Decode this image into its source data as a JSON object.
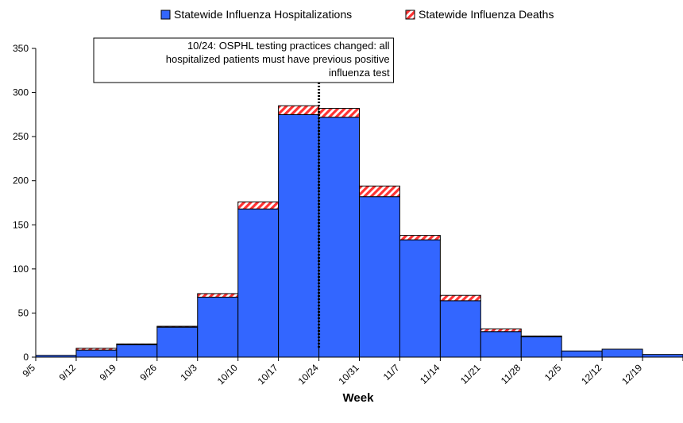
{
  "chart_data": {
    "type": "bar",
    "stacked": true,
    "categories": [
      "9/5",
      "9/12",
      "9/19",
      "9/26",
      "10/3",
      "10/10",
      "10/17",
      "10/24",
      "10/31",
      "11/7",
      "11/14",
      "11/21",
      "11/28",
      "12/5",
      "12/12",
      "12/19"
    ],
    "series": [
      {
        "name": "Statewide Influenza Hospitalizations",
        "color": "#3366ff",
        "values": [
          2,
          8,
          14,
          34,
          68,
          168,
          275,
          272,
          182,
          133,
          64,
          29,
          23,
          7,
          9,
          3
        ]
      },
      {
        "name": "Statewide Influenza Deaths",
        "color": "#ff3333",
        "pattern": "hatched",
        "values": [
          0,
          2,
          1,
          1,
          4,
          8,
          10,
          10,
          12,
          5,
          6,
          3,
          1,
          0,
          0,
          0
        ]
      }
    ],
    "title": "",
    "xlabel": "Week",
    "ylabel": "",
    "ylim": [
      0,
      350
    ],
    "yticks": [
      0,
      50,
      100,
      150,
      200,
      250,
      300,
      350
    ],
    "grid": false,
    "legend_position": "top",
    "annotation": {
      "category": "10/24",
      "line_style": "dotted",
      "lines": [
        "10/24: OSPHL testing practices changed: all",
        "hospitalized patients must have previous positive",
        "influenza test"
      ]
    }
  }
}
